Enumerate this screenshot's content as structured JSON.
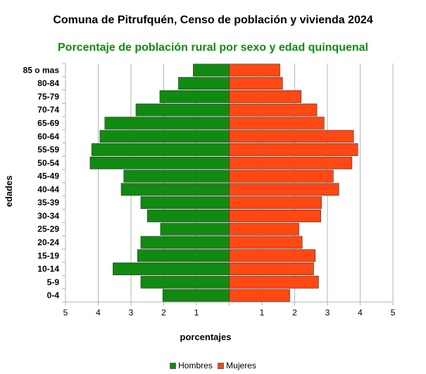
{
  "chart_data": {
    "type": "bar",
    "orientation": "horizontal",
    "title": "Comuna de Pitrufquén, Censo de población y vivienda 2024",
    "subtitle": "Porcentaje de población rural por sexo y edad quinquenal",
    "xlabel": "porcentajes",
    "ylabel": "edades",
    "xlim": [
      -5,
      5
    ],
    "xtick_labels": [
      "5",
      "4",
      "3",
      "2",
      "1",
      "",
      "1",
      "2",
      "3",
      "4",
      "5"
    ],
    "grid": true,
    "legend_position": "bottom",
    "categories": [
      "85 o mas",
      "80-84",
      "75-79",
      "70-74",
      "65-69",
      "60-64",
      "55-59",
      "50-54",
      "45-49",
      "40-44",
      "35-39",
      "30-34",
      "25-29",
      "20-24",
      "15-19",
      "10-14",
      "5-9",
      "0-4"
    ],
    "series": [
      {
        "name": "Hombres",
        "color": "#118a11",
        "values": [
          1.1,
          1.55,
          2.12,
          2.85,
          3.8,
          3.95,
          4.2,
          4.25,
          3.22,
          3.3,
          2.7,
          2.5,
          2.1,
          2.7,
          2.8,
          3.55,
          2.7,
          2.03
        ]
      },
      {
        "name": "Mujeres",
        "color": "#ff4813",
        "values": [
          1.55,
          1.63,
          2.2,
          2.68,
          2.9,
          3.8,
          3.93,
          3.75,
          3.18,
          3.35,
          2.82,
          2.8,
          2.13,
          2.23,
          2.63,
          2.58,
          2.73,
          1.85
        ]
      }
    ]
  }
}
